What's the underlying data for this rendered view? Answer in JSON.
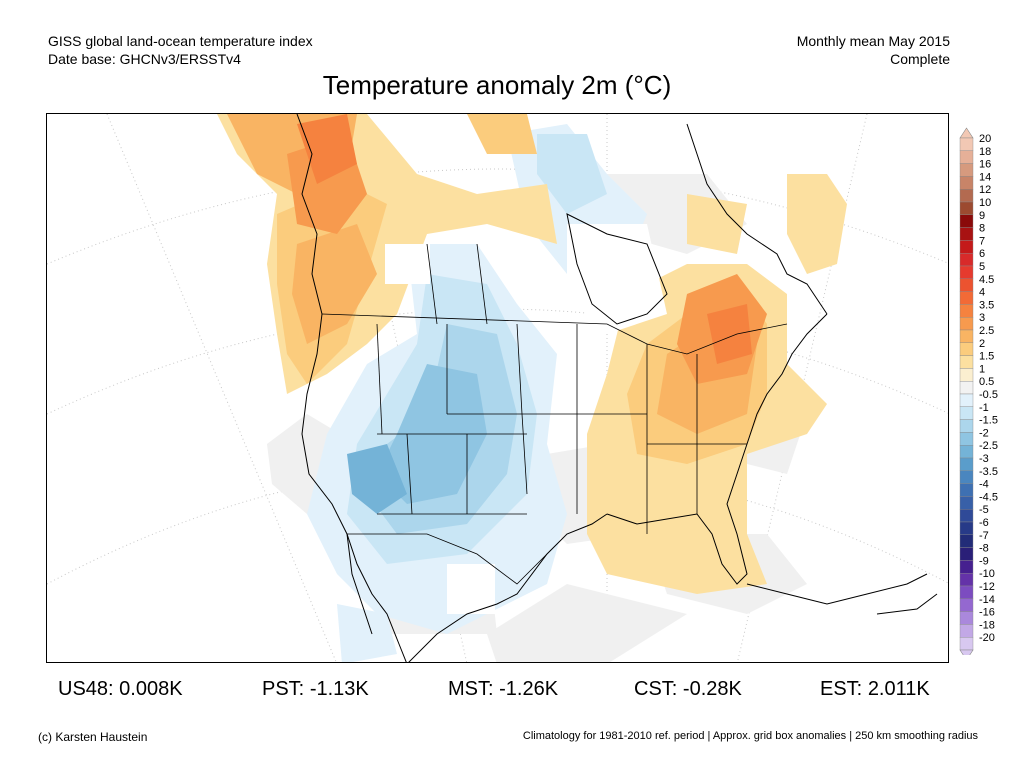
{
  "header": {
    "line1_left": "GISS global land-ocean temperature index",
    "line2_left": "Date base: GHCNv3/ERSSTv4",
    "line1_right": "Monthly mean May 2015",
    "line2_right": "Complete"
  },
  "title": "Temperature anomaly 2m (°C)",
  "colorbar": {
    "labels": [
      "20",
      "18",
      "16",
      "14",
      "12",
      "10",
      "9",
      "8",
      "7",
      "6",
      "5",
      "4.5",
      "4",
      "3.5",
      "3",
      "2.5",
      "2",
      "1.5",
      "1",
      "0.5",
      "-0.5",
      "-1",
      "-1.5",
      "-2",
      "-2.5",
      "-3",
      "-3.5",
      "-4",
      "-4.5",
      "-5",
      "-6",
      "-7",
      "-8",
      "-9",
      "-10",
      "-12",
      "-14",
      "-16",
      "-18",
      "-20"
    ],
    "colors": [
      "#f2c8b4",
      "#e6b098",
      "#d69a7e",
      "#c88468",
      "#b36a50",
      "#9c4a30",
      "#8a0a0a",
      "#a81212",
      "#c41a1a",
      "#d82a2a",
      "#e63a2e",
      "#ec5330",
      "#f26a36",
      "#f5823f",
      "#f79a4e",
      "#f9b463",
      "#fbcc7d",
      "#fce0a0",
      "#fbefd0",
      "#f2f2f2",
      "#e2f1fb",
      "#c9e6f5",
      "#acd6ec",
      "#8fc5e2",
      "#74b3d7",
      "#5a9dcb",
      "#4a86bf",
      "#3e70b2",
      "#3860a8",
      "#2f4a98",
      "#273a88",
      "#222c78",
      "#2a1f78",
      "#46208f",
      "#6432a8",
      "#7c4cc0",
      "#9468d0",
      "#aa88dc",
      "#c2a8e6",
      "#d8c8f0"
    ]
  },
  "stats": [
    {
      "label": "US48:",
      "value": "0.008K"
    },
    {
      "label": "PST:",
      "value": "-1.13K"
    },
    {
      "label": "MST:",
      "value": "-1.26K"
    },
    {
      "label": "CST:",
      "value": "-0.28K"
    },
    {
      "label": "EST:",
      "value": "2.011K"
    }
  ],
  "footer": {
    "left": "(c) Karsten Haustein",
    "right": "Climatology for 1981-2010 ref. period | Approx. grid box anomalies | 250 km smoothing radius"
  }
}
